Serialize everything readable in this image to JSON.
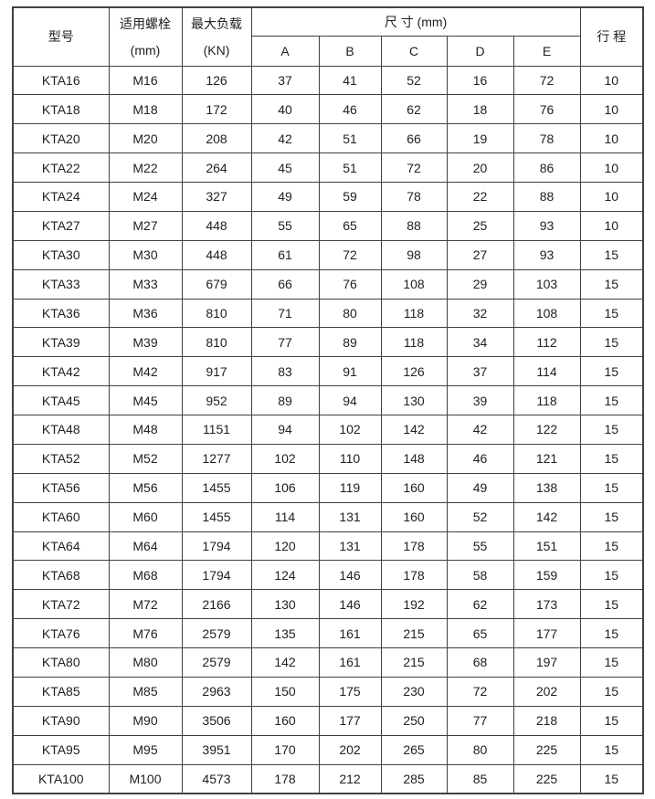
{
  "colors": {
    "border": "#404040",
    "text": "#212121",
    "background": "#ffffff"
  },
  "table": {
    "headers": {
      "model": "型号",
      "bolt_line1": "适用螺栓",
      "bolt_line2": "(mm)",
      "load_line1": "最大负载",
      "load_line2": "(KN)",
      "dimensions": "尺 寸  (mm)",
      "dim_cols": [
        "A",
        "B",
        "C",
        "D",
        "E"
      ],
      "stroke": "行 程"
    },
    "rows": [
      [
        "KTA16",
        "M16",
        "126",
        "37",
        "41",
        "52",
        "16",
        "72",
        "10"
      ],
      [
        "KTA18",
        "M18",
        "172",
        "40",
        "46",
        "62",
        "18",
        "76",
        "10"
      ],
      [
        "KTA20",
        "M20",
        "208",
        "42",
        "51",
        "66",
        "19",
        "78",
        "10"
      ],
      [
        "KTA22",
        "M22",
        "264",
        "45",
        "51",
        "72",
        "20",
        "86",
        "10"
      ],
      [
        "KTA24",
        "M24",
        "327",
        "49",
        "59",
        "78",
        "22",
        "88",
        "10"
      ],
      [
        "KTA27",
        "M27",
        "448",
        "55",
        "65",
        "88",
        "25",
        "93",
        "10"
      ],
      [
        "KTA30",
        "M30",
        "448",
        "61",
        "72",
        "98",
        "27",
        "93",
        "15"
      ],
      [
        "KTA33",
        "M33",
        "679",
        "66",
        "76",
        "108",
        "29",
        "103",
        "15"
      ],
      [
        "KTA36",
        "M36",
        "810",
        "71",
        "80",
        "118",
        "32",
        "108",
        "15"
      ],
      [
        "KTA39",
        "M39",
        "810",
        "77",
        "89",
        "118",
        "34",
        "112",
        "15"
      ],
      [
        "KTA42",
        "M42",
        "917",
        "83",
        "91",
        "126",
        "37",
        "114",
        "15"
      ],
      [
        "KTA45",
        "M45",
        "952",
        "89",
        "94",
        "130",
        "39",
        "118",
        "15"
      ],
      [
        "KTA48",
        "M48",
        "1151",
        "94",
        "102",
        "142",
        "42",
        "122",
        "15"
      ],
      [
        "KTA52",
        "M52",
        "1277",
        "102",
        "110",
        "148",
        "46",
        "121",
        "15"
      ],
      [
        "KTA56",
        "M56",
        "1455",
        "106",
        "119",
        "160",
        "49",
        "138",
        "15"
      ],
      [
        "KTA60",
        "M60",
        "1455",
        "114",
        "131",
        "160",
        "52",
        "142",
        "15"
      ],
      [
        "KTA64",
        "M64",
        "1794",
        "120",
        "131",
        "178",
        "55",
        "151",
        "15"
      ],
      [
        "KTA68",
        "M68",
        "1794",
        "124",
        "146",
        "178",
        "58",
        "159",
        "15"
      ],
      [
        "KTA72",
        "M72",
        "2166",
        "130",
        "146",
        "192",
        "62",
        "173",
        "15"
      ],
      [
        "KTA76",
        "M76",
        "2579",
        "135",
        "161",
        "215",
        "65",
        "177",
        "15"
      ],
      [
        "KTA80",
        "M80",
        "2579",
        "142",
        "161",
        "215",
        "68",
        "197",
        "15"
      ],
      [
        "KTA85",
        "M85",
        "2963",
        "150",
        "175",
        "230",
        "72",
        "202",
        "15"
      ],
      [
        "KTA90",
        "M90",
        "3506",
        "160",
        "177",
        "250",
        "77",
        "218",
        "15"
      ],
      [
        "KTA95",
        "M95",
        "3951",
        "170",
        "202",
        "265",
        "80",
        "225",
        "15"
      ],
      [
        "KTA100",
        "M100",
        "4573",
        "178",
        "212",
        "285",
        "85",
        "225",
        "15"
      ]
    ]
  }
}
